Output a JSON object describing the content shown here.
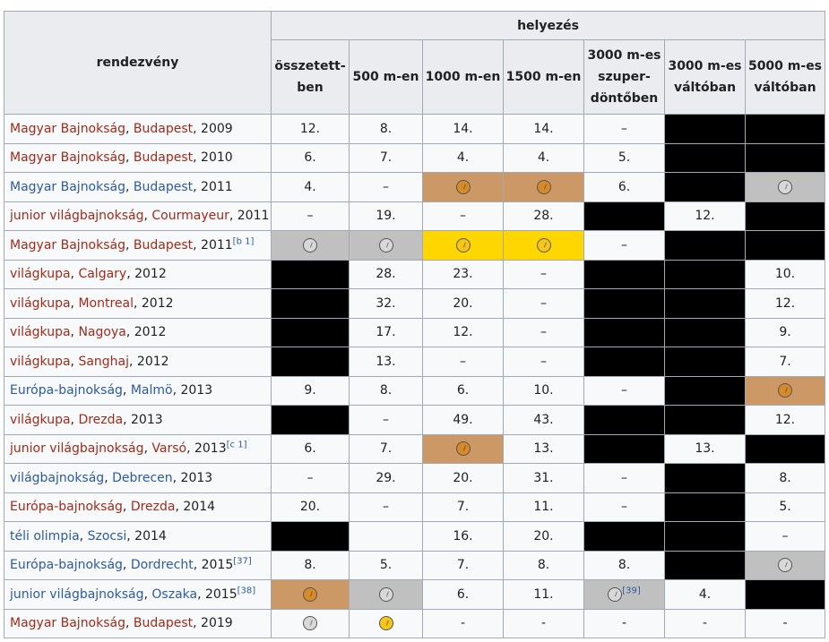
{
  "colors": {
    "gold": "#ffd700",
    "silver": "#c0c0c0",
    "bronze": "#cc9966",
    "empty": "#000000",
    "link_red": "#a02b1b",
    "link_blue": "#2c5aa0"
  },
  "table": {
    "header_event": "rendezvény",
    "header_group": "helyezés",
    "columns": [
      [
        "összetett-",
        "ben"
      ],
      [
        "500 m-en"
      ],
      [
        "1000 m-en"
      ],
      [
        "1500 m-en"
      ],
      [
        "3000 m-es",
        "szuper-",
        "döntőben"
      ],
      [
        "3000 m-es",
        "váltóban"
      ],
      [
        "5000 m-es",
        "váltóban"
      ]
    ],
    "rows": [
      {
        "p": [
          {
            "t": "Magyar Bajnokság",
            "c": "r"
          },
          {
            "t": ", "
          },
          {
            "t": "Budapest",
            "c": "r"
          },
          {
            "t": ", 2009"
          }
        ],
        "cells": [
          "12.",
          "8.",
          "14.",
          "14.",
          "–",
          {
            "k": "blk"
          },
          {
            "k": "blk"
          }
        ]
      },
      {
        "p": [
          {
            "t": "Magyar Bajnokság",
            "c": "r"
          },
          {
            "t": ", "
          },
          {
            "t": "Budapest",
            "c": "r"
          },
          {
            "t": ", 2010"
          }
        ],
        "cells": [
          "6.",
          "7.",
          "4.",
          "4.",
          "5.",
          {
            "k": "blk"
          },
          {
            "k": "blk"
          }
        ]
      },
      {
        "p": [
          {
            "t": "Magyar Bajnokság",
            "c": "b"
          },
          {
            "t": ", "
          },
          {
            "t": "Budapest",
            "c": "b"
          },
          {
            "t": ", 2011"
          }
        ],
        "cells": [
          "4.",
          "–",
          {
            "k": "bronze",
            "m": "bronze"
          },
          {
            "k": "bronze",
            "m": "bronze"
          },
          "6.",
          {
            "k": "blk"
          },
          {
            "k": "silver",
            "m": "silver"
          }
        ]
      },
      {
        "p": [
          {
            "t": "junior világbajnokság",
            "c": "r"
          },
          {
            "t": ", "
          },
          {
            "t": "Courmayeur",
            "c": "r"
          },
          {
            "t": ", 2011"
          }
        ],
        "cells": [
          "–",
          "19.",
          "–",
          "28.",
          {
            "k": "blk"
          },
          "12.",
          {
            "k": "blk"
          }
        ]
      },
      {
        "p": [
          {
            "t": "Magyar Bajnokság",
            "c": "r"
          },
          {
            "t": ", "
          },
          {
            "t": "Budapest",
            "c": "r"
          },
          {
            "t": ", 2011"
          },
          {
            "t": "[b 1]",
            "c": "sup"
          }
        ],
        "cells": [
          {
            "k": "silver",
            "m": "silver"
          },
          {
            "k": "silver",
            "m": "silver"
          },
          {
            "k": "gold",
            "m": "gold"
          },
          {
            "k": "gold",
            "m": "gold"
          },
          "–",
          {
            "k": "blk"
          },
          {
            "k": "blk"
          }
        ]
      },
      {
        "p": [
          {
            "t": "világkupa",
            "c": "r"
          },
          {
            "t": ", "
          },
          {
            "t": "Calgary",
            "c": "r"
          },
          {
            "t": ", 2012"
          }
        ],
        "cells": [
          {
            "k": "blk"
          },
          "28.",
          "23.",
          "–",
          {
            "k": "blk"
          },
          {
            "k": "blk"
          },
          "10."
        ]
      },
      {
        "p": [
          {
            "t": "világkupa",
            "c": "r"
          },
          {
            "t": ", "
          },
          {
            "t": "Montreal",
            "c": "r"
          },
          {
            "t": ", 2012"
          }
        ],
        "cells": [
          {
            "k": "blk"
          },
          "32.",
          "20.",
          "–",
          {
            "k": "blk"
          },
          {
            "k": "blk"
          },
          "12."
        ]
      },
      {
        "p": [
          {
            "t": "világkupa",
            "c": "r"
          },
          {
            "t": ", "
          },
          {
            "t": "Nagoya",
            "c": "r"
          },
          {
            "t": ", 2012"
          }
        ],
        "cells": [
          {
            "k": "blk"
          },
          "17.",
          "12.",
          "–",
          {
            "k": "blk"
          },
          {
            "k": "blk"
          },
          "9."
        ]
      },
      {
        "p": [
          {
            "t": "világkupa",
            "c": "r"
          },
          {
            "t": ", "
          },
          {
            "t": "Sanghaj",
            "c": "r"
          },
          {
            "t": ", 2012"
          }
        ],
        "cells": [
          {
            "k": "blk"
          },
          "13.",
          "–",
          "–",
          {
            "k": "blk"
          },
          {
            "k": "blk"
          },
          "7."
        ]
      },
      {
        "p": [
          {
            "t": "Európa-bajnokság",
            "c": "b"
          },
          {
            "t": ", "
          },
          {
            "t": "Malmö",
            "c": "b"
          },
          {
            "t": ", 2013"
          }
        ],
        "cells": [
          "9.",
          "8.",
          "6.",
          "10.",
          "–",
          {
            "k": "blk"
          },
          {
            "k": "bronze",
            "m": "bronze"
          }
        ]
      },
      {
        "p": [
          {
            "t": "világkupa",
            "c": "r"
          },
          {
            "t": ", "
          },
          {
            "t": "Drezda",
            "c": "r"
          },
          {
            "t": ", 2013"
          }
        ],
        "cells": [
          {
            "k": "blk"
          },
          "–",
          "49.",
          "43.",
          {
            "k": "blk"
          },
          {
            "k": "blk"
          },
          "12."
        ]
      },
      {
        "p": [
          {
            "t": "junior világbajnokság",
            "c": "r"
          },
          {
            "t": ", "
          },
          {
            "t": "Varsó",
            "c": "r"
          },
          {
            "t": ", 2013"
          },
          {
            "t": "[c 1]",
            "c": "sup"
          }
        ],
        "cells": [
          "6.",
          "7.",
          {
            "k": "bronze",
            "m": "bronze"
          },
          "13.",
          {
            "k": "blk"
          },
          "13.",
          {
            "k": "blk"
          }
        ]
      },
      {
        "p": [
          {
            "t": "világbajnokság",
            "c": "b"
          },
          {
            "t": ", "
          },
          {
            "t": "Debrecen",
            "c": "b"
          },
          {
            "t": ", 2013"
          }
        ],
        "cells": [
          "–",
          "29.",
          "20.",
          "31.",
          "–",
          {
            "k": "blk"
          },
          "8."
        ]
      },
      {
        "p": [
          {
            "t": "Európa-bajnokság",
            "c": "r"
          },
          {
            "t": ", "
          },
          {
            "t": "Drezda",
            "c": "r"
          },
          {
            "t": ", 2014"
          }
        ],
        "cells": [
          "20.",
          "–",
          "7.",
          "11.",
          "–",
          {
            "k": "blk"
          },
          "5."
        ]
      },
      {
        "p": [
          {
            "t": "téli olimpia",
            "c": "b"
          },
          {
            "t": ", "
          },
          {
            "t": "Szocsi",
            "c": "b"
          },
          {
            "t": ", 2014"
          }
        ],
        "cells": [
          {
            "k": "blk"
          },
          "",
          "16.",
          "20.",
          {
            "k": "blk"
          },
          {
            "k": "blk"
          },
          "–"
        ]
      },
      {
        "p": [
          {
            "t": "Európa-bajnokság",
            "c": "b"
          },
          {
            "t": ", "
          },
          {
            "t": "Dordrecht",
            "c": "b"
          },
          {
            "t": ", 2015"
          },
          {
            "t": "[37]",
            "c": "sup"
          }
        ],
        "cells": [
          "8.",
          "5.",
          "7.",
          "8.",
          "8.",
          {
            "k": "blk"
          },
          {
            "k": "silver",
            "m": "silver"
          }
        ]
      },
      {
        "p": [
          {
            "t": "junior világbajnokság",
            "c": "b"
          },
          {
            "t": ", "
          },
          {
            "t": "Oszaka",
            "c": "b"
          },
          {
            "t": ", 2015"
          },
          {
            "t": "[38]",
            "c": "sup"
          }
        ],
        "cells": [
          {
            "k": "bronze",
            "m": "bronze"
          },
          {
            "k": "silver",
            "m": "silver"
          },
          "6.",
          "11.",
          {
            "k": "silver",
            "m": "silver",
            "ref": "[39]"
          },
          "4.",
          {
            "k": "blk"
          }
        ]
      },
      {
        "p": [
          {
            "t": "Magyar Bajnokság",
            "c": "r"
          },
          {
            "t": ", "
          },
          {
            "t": "Budapest",
            "c": "r"
          },
          {
            "t": ", 2019"
          }
        ],
        "cells": [
          {
            "k": "plain",
            "m": "silver"
          },
          {
            "k": "plain",
            "m": "gold"
          },
          "-",
          "-",
          "-",
          "-",
          "-"
        ]
      }
    ]
  }
}
